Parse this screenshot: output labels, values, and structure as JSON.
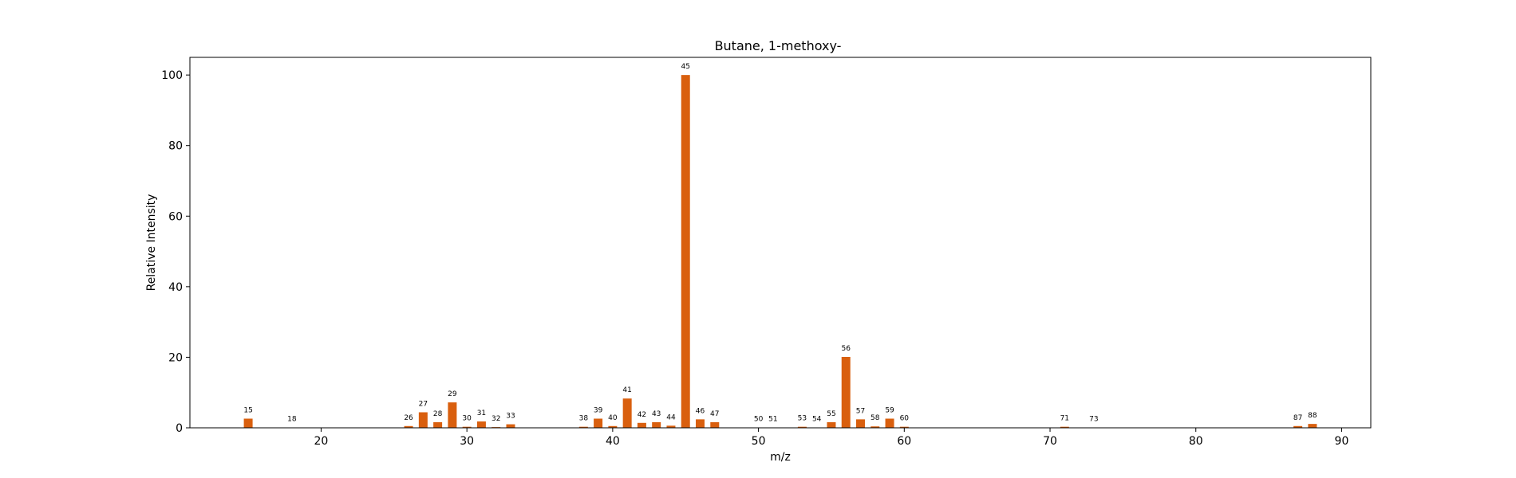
{
  "chart_data": {
    "type": "bar",
    "title": "Butane, 1-methoxy-",
    "xlabel": "m/z",
    "ylabel": "Relative Intensity",
    "xlim": [
      11,
      92
    ],
    "ylim": [
      0,
      105
    ],
    "xticks": [
      20,
      30,
      40,
      50,
      60,
      70,
      80,
      90
    ],
    "yticks": [
      0,
      20,
      40,
      60,
      80,
      100
    ],
    "grid": false,
    "bar_color": "#d95f0e",
    "bars": [
      {
        "x": 15,
        "y": 2.6
      },
      {
        "x": 18,
        "y": 0.1
      },
      {
        "x": 26,
        "y": 0.5
      },
      {
        "x": 27,
        "y": 4.4
      },
      {
        "x": 28,
        "y": 1.6
      },
      {
        "x": 29,
        "y": 7.2
      },
      {
        "x": 30,
        "y": 0.3
      },
      {
        "x": 31,
        "y": 1.8
      },
      {
        "x": 32,
        "y": 0.2
      },
      {
        "x": 33,
        "y": 1.0
      },
      {
        "x": 38,
        "y": 0.3
      },
      {
        "x": 39,
        "y": 2.6
      },
      {
        "x": 40,
        "y": 0.5
      },
      {
        "x": 41,
        "y": 8.3
      },
      {
        "x": 42,
        "y": 1.4
      },
      {
        "x": 43,
        "y": 1.6
      },
      {
        "x": 44,
        "y": 0.6
      },
      {
        "x": 45,
        "y": 100
      },
      {
        "x": 46,
        "y": 2.4
      },
      {
        "x": 47,
        "y": 1.6
      },
      {
        "x": 50,
        "y": 0.1
      },
      {
        "x": 51,
        "y": 0.1
      },
      {
        "x": 53,
        "y": 0.3
      },
      {
        "x": 54,
        "y": 0.1
      },
      {
        "x": 55,
        "y": 1.6
      },
      {
        "x": 56,
        "y": 20.1
      },
      {
        "x": 57,
        "y": 2.4
      },
      {
        "x": 58,
        "y": 0.4
      },
      {
        "x": 59,
        "y": 2.6
      },
      {
        "x": 60,
        "y": 0.3
      },
      {
        "x": 71,
        "y": 0.3
      },
      {
        "x": 73,
        "y": 0.1
      },
      {
        "x": 87,
        "y": 0.5
      },
      {
        "x": 88,
        "y": 1.1
      }
    ]
  }
}
